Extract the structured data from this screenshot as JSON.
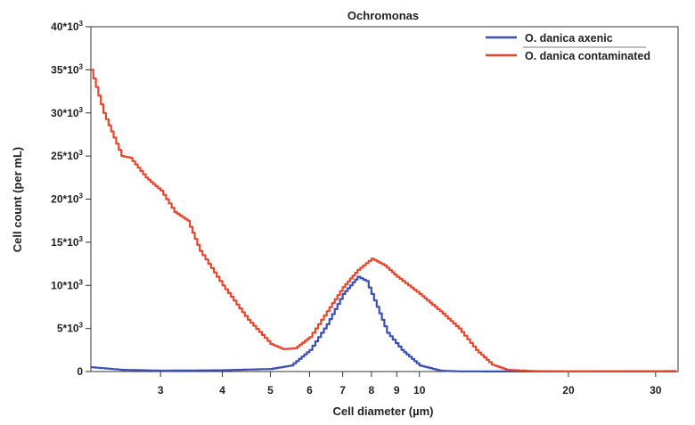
{
  "chart_data": {
    "type": "line",
    "title": "Ochromonas",
    "xlabel": "Cell diameter (µm)",
    "ylabel": "Cell count (per mL)",
    "xscale": "log",
    "xlim": [
      2.17,
      33.3
    ],
    "ylim": [
      0,
      40000
    ],
    "xticks": [
      3,
      4,
      5,
      6,
      7,
      8,
      9,
      10,
      20,
      30
    ],
    "xtick_labels": [
      "3",
      "4",
      "5",
      "6",
      "7",
      "8",
      "9",
      "10",
      "20",
      "30"
    ],
    "yticks": [
      0,
      5000,
      10000,
      15000,
      20000,
      25000,
      30000,
      35000,
      40000
    ],
    "ytick_labels": [
      {
        "base": "0",
        "exp": ""
      },
      {
        "base": "5*10",
        "exp": "3"
      },
      {
        "base": "10*10",
        "exp": "3"
      },
      {
        "base": "15*10",
        "exp": "3"
      },
      {
        "base": "20*10",
        "exp": "3"
      },
      {
        "base": "25*10",
        "exp": "3"
      },
      {
        "base": "30*10",
        "exp": "3"
      },
      {
        "base": "35*10",
        "exp": "3"
      },
      {
        "base": "40*10",
        "exp": "3"
      }
    ],
    "grid": false,
    "legend_position": "top-right",
    "series": [
      {
        "name": "O. danica axenic",
        "color": "#3a4fb5",
        "x": [
          2.17,
          2.5,
          3,
          4,
          5,
          5.5,
          6,
          6.5,
          7,
          7.5,
          7.8,
          8.2,
          8.6,
          9.2,
          10,
          11,
          12,
          15,
          20,
          33
        ],
        "y": [
          500,
          200,
          100,
          150,
          300,
          700,
          2500,
          5500,
          9000,
          11000,
          10500,
          7500,
          4500,
          2500,
          700,
          100,
          20,
          10,
          10,
          10
        ]
      },
      {
        "name": "O. danica contaminated",
        "color": "#e8462c",
        "x": [
          2.17,
          2.3,
          2.5,
          2.6,
          2.8,
          3.0,
          3.2,
          3.4,
          3.6,
          4.0,
          4.5,
          5.0,
          5.3,
          5.6,
          6.0,
          6.5,
          7.0,
          7.5,
          8.0,
          8.5,
          9.0,
          10,
          11,
          12,
          13,
          14,
          15,
          17,
          20,
          33
        ],
        "y": [
          35000,
          30000,
          25000,
          24800,
          22500,
          21000,
          18500,
          17500,
          14000,
          10000,
          6000,
          3200,
          2600,
          2700,
          4000,
          7000,
          9800,
          11800,
          13100,
          12300,
          11000,
          9000,
          7000,
          5000,
          2500,
          800,
          200,
          50,
          20,
          50
        ]
      }
    ]
  }
}
